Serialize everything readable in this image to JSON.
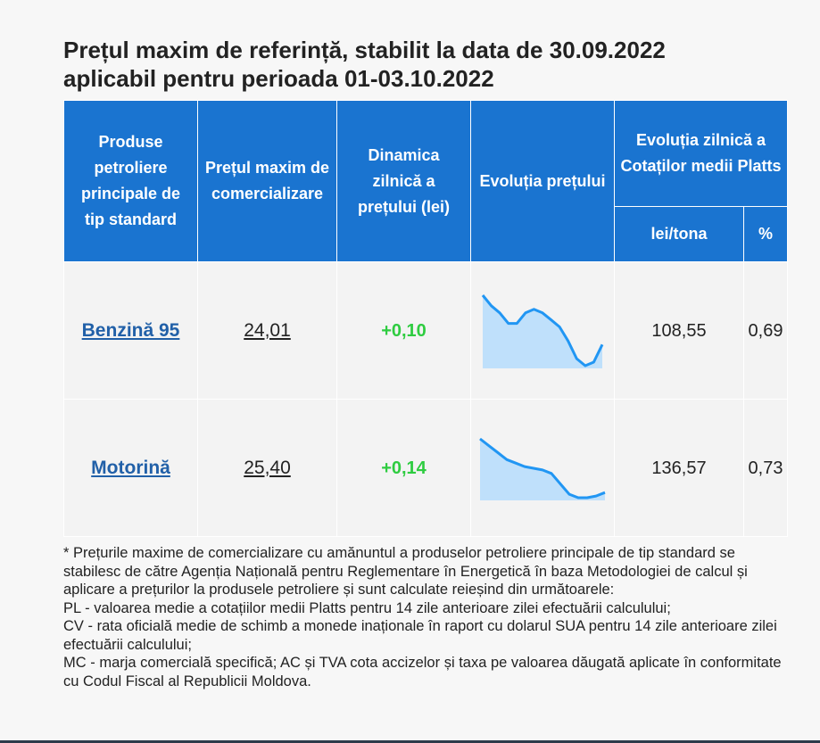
{
  "title": {
    "line1": "Prețul maxim de referință, stabilit la data de 30.09.2022",
    "line2": "aplicabil pentru perioada 01-03.10.2022"
  },
  "headers": {
    "products": "Produse petroliere principale de tip standard",
    "max_price": "Prețul maxim de comercializare",
    "dynamics": "Dinamica zilnică a prețului (lei)",
    "evolution": "Evoluția prețului",
    "platts": "Evoluția zilnică a Cotaților medii Platts",
    "lei_tona": "lei/tona",
    "percent": "%"
  },
  "rows": [
    {
      "product": "Benzină 95",
      "price": "24,01",
      "dynamic": "+0,10",
      "lei_tona": "108,55",
      "percent": "0,69",
      "sparkline": [
        25.4,
        25.1,
        24.9,
        24.6,
        24.6,
        24.9,
        25.0,
        24.9,
        24.7,
        24.5,
        24.1,
        23.6,
        23.4,
        23.5,
        24.0
      ]
    },
    {
      "product": "Motorină",
      "price": "25,40",
      "dynamic": "+0,14",
      "lei_tona": "136,57",
      "percent": "0,73",
      "sparkline": [
        27.6,
        27.4,
        27.2,
        27.0,
        26.9,
        26.8,
        26.75,
        26.7,
        26.6,
        26.3,
        26.0,
        25.9,
        25.9,
        25.95,
        26.05
      ]
    }
  ],
  "footnote": [
    "* Prețurile maxime de comercializare cu amănuntul a produselor petroliere principale de tip standard se stabilesc de către Agenția Națională pentru Reglementare în Energetică în baza Metodologiei de calcul și aplicare a prețurilor la produsele petroliere și sunt calculate reieșind din următoarele:",
    "PL - valoarea medie a cotațiilor medii Platts pentru 14 zile anterioare zilei efectuării calculului;",
    "CV - rata oficială medie de schimb a monede inaționale în raport cu dolarul SUA pentru 14 zile anterioare zilei efectuării calculului;",
    "MC - marja comercială specifică; AC și TVA cota accizelor și taxa pe valoarea dăugată aplicate în conformitate cu Codul Fiscal al Republicii Moldova."
  ],
  "colors": {
    "header_bg": "#1a74d0",
    "link": "#2160a8",
    "positive": "#2ecc40",
    "spark_line": "#2196f3",
    "spark_fill": "#bfe0fb"
  }
}
